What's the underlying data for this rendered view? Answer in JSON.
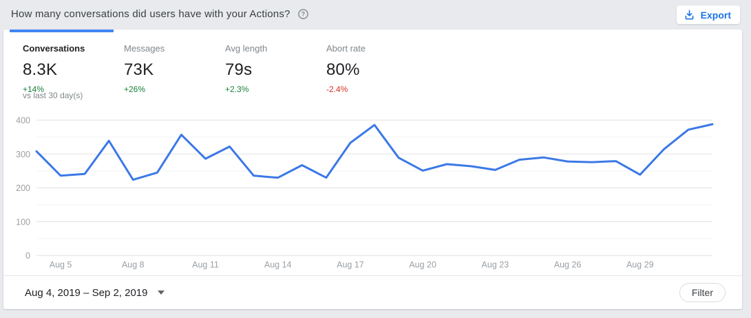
{
  "header": {
    "title": "How many conversations did users have with your Actions?",
    "export_label": "Export"
  },
  "metrics": {
    "tabs": [
      {
        "label": "Conversations",
        "value": "8.3K",
        "delta": "+14%",
        "trend": "up",
        "active": true
      },
      {
        "label": "Messages",
        "value": "73K",
        "delta": "+26%",
        "trend": "up",
        "active": false
      },
      {
        "label": "Avg length",
        "value": "79s",
        "delta": "+2.3%",
        "trend": "up",
        "active": false
      },
      {
        "label": "Abort rate",
        "value": "80%",
        "delta": "-2.4%",
        "trend": "down",
        "active": false
      }
    ],
    "comparison_note": "vs last 30 day(s)"
  },
  "chart_data": {
    "type": "line",
    "title": "",
    "series_name": "Conversations",
    "x": [
      "Aug 4",
      "Aug 5",
      "Aug 6",
      "Aug 7",
      "Aug 8",
      "Aug 9",
      "Aug 10",
      "Aug 11",
      "Aug 12",
      "Aug 13",
      "Aug 14",
      "Aug 15",
      "Aug 16",
      "Aug 17",
      "Aug 18",
      "Aug 19",
      "Aug 20",
      "Aug 21",
      "Aug 22",
      "Aug 23",
      "Aug 24",
      "Aug 25",
      "Aug 26",
      "Aug 27",
      "Aug 28",
      "Aug 29",
      "Aug 30",
      "Aug 31",
      "Sep 1"
    ],
    "values": [
      308,
      236,
      241,
      339,
      224,
      245,
      357,
      286,
      322,
      236,
      230,
      267,
      230,
      333,
      386,
      289,
      251,
      270,
      264,
      253,
      283,
      290,
      278,
      276,
      279,
      239,
      315,
      372,
      388
    ],
    "xlabel": "",
    "ylabel": "",
    "ylim": [
      0,
      400
    ],
    "y_ticks": [
      0,
      100,
      200,
      300,
      400
    ],
    "y_minor_step": 50,
    "x_tick_labels": [
      "Aug 5",
      "Aug 8",
      "Aug 11",
      "Aug 14",
      "Aug 17",
      "Aug 20",
      "Aug 23",
      "Aug 26",
      "Aug 29"
    ],
    "x_tick_indices": [
      1,
      4,
      7,
      10,
      13,
      16,
      19,
      22,
      25
    ],
    "grid": true,
    "legend": "none"
  },
  "footer": {
    "date_range": "Aug 4, 2019 – Sep 2, 2019",
    "filter_label": "Filter"
  },
  "colors": {
    "positive": "#188038",
    "negative": "#d93025",
    "accent": "#1a73e8",
    "line": "#3b78e7",
    "tab_indicator": "#4285f4",
    "grid_major": "#e1e1e1",
    "grid_minor": "#f2f2f2",
    "axis_label": "#9e9e9e"
  }
}
